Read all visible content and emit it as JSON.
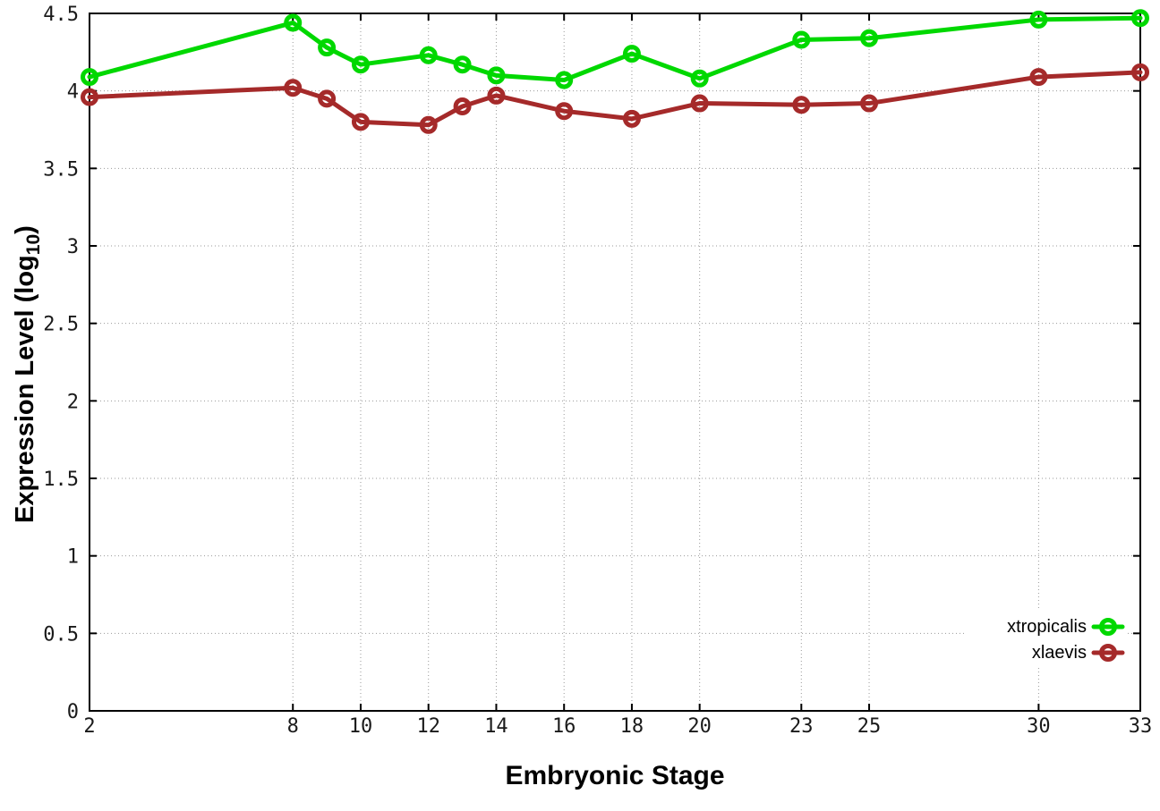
{
  "figure": {
    "x_axis_label": "Embryonic Stage",
    "y_axis_label_main": "Expression Level (log",
    "y_axis_label_sub": "10",
    "y_axis_label_close": ")"
  },
  "chart_data": {
    "type": "line",
    "title": "",
    "xlabel": "Embryonic Stage",
    "ylabel": "Expression Level (log10)",
    "x": [
      2,
      8,
      9,
      10,
      12,
      13,
      14,
      16,
      18,
      20,
      23,
      25,
      30,
      33
    ],
    "series": [
      {
        "name": "xtropicalis",
        "color": "#00d800",
        "marker": "open-circle",
        "values": [
          4.09,
          4.44,
          4.28,
          4.17,
          4.23,
          4.17,
          4.1,
          4.07,
          4.24,
          4.08,
          4.33,
          4.34,
          4.46,
          4.47
        ]
      },
      {
        "name": "xlaevis",
        "color": "#a52a2a",
        "marker": "open-circle",
        "values": [
          3.96,
          4.02,
          3.95,
          3.8,
          3.78,
          3.9,
          3.97,
          3.87,
          3.82,
          3.92,
          3.91,
          3.92,
          4.09,
          4.12
        ]
      }
    ],
    "xlim": [
      2,
      33
    ],
    "ylim": [
      0,
      4.5
    ],
    "x_ticks": {
      "positions": [
        2,
        8,
        10,
        12,
        14,
        16,
        18,
        20,
        23,
        25,
        30,
        33
      ],
      "labels": [
        "2",
        "8",
        "10",
        "12",
        "14",
        "16",
        "18",
        "20",
        "23",
        "25",
        "30",
        "33"
      ]
    },
    "y_ticks": {
      "positions": [
        0,
        0.5,
        1,
        1.5,
        2,
        2.5,
        3,
        3.5,
        4,
        4.5
      ],
      "labels": [
        "0",
        "0.5",
        "1",
        "1.5",
        "2",
        "2.5",
        "3",
        "3.5",
        "4",
        "4.5"
      ]
    },
    "grid": true,
    "legend": {
      "position": "inside-right-lower",
      "entries": [
        "xtropicalis",
        "xlaevis"
      ]
    }
  }
}
